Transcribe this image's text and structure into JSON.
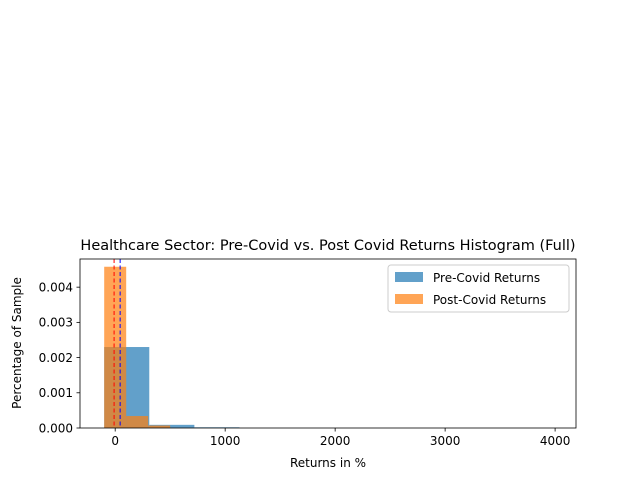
{
  "chart_data": {
    "type": "histogram",
    "title": "Healthcare Sector: Pre-Covid vs. Post Covid Returns Histogram (Full)",
    "xlabel": "Returns in %",
    "ylabel": "Percentage of Sample",
    "xlim": [
      -320,
      4190
    ],
    "ylim": [
      0,
      0.0048
    ],
    "xticks": [
      0,
      1000,
      2000,
      3000,
      4000
    ],
    "xtick_labels": [
      "0",
      "1000",
      "2000",
      "3000",
      "4000"
    ],
    "yticks": [
      0.0,
      0.001,
      0.002,
      0.003,
      0.004
    ],
    "ytick_labels": [
      "0.000",
      "0.001",
      "0.002",
      "0.003",
      "0.004"
    ],
    "grid": false,
    "legend_position": "top-right",
    "series": [
      {
        "name": "Pre-Covid Returns",
        "color": "#1f77b4",
        "opacity": 0.7,
        "bins": [
          {
            "x0": -100,
            "x1": 310,
            "value": 0.0023
          },
          {
            "x0": 310,
            "x1": 720,
            "value": 9e-05
          },
          {
            "x0": 720,
            "x1": 1130,
            "value": 2e-05
          }
        ]
      },
      {
        "name": "Post-Covid Returns",
        "color": "#ff7f0e",
        "opacity": 0.7,
        "bins": [
          {
            "x0": -100,
            "x1": 100,
            "value": 0.00458
          },
          {
            "x0": 100,
            "x1": 300,
            "value": 0.00034
          },
          {
            "x0": 300,
            "x1": 500,
            "value": 7e-05
          }
        ]
      }
    ],
    "reference_lines": [
      {
        "x": -10,
        "color": "#ff0000",
        "style": "dashed"
      },
      {
        "x": 45,
        "color": "#0000ff",
        "style": "dashed"
      }
    ]
  }
}
